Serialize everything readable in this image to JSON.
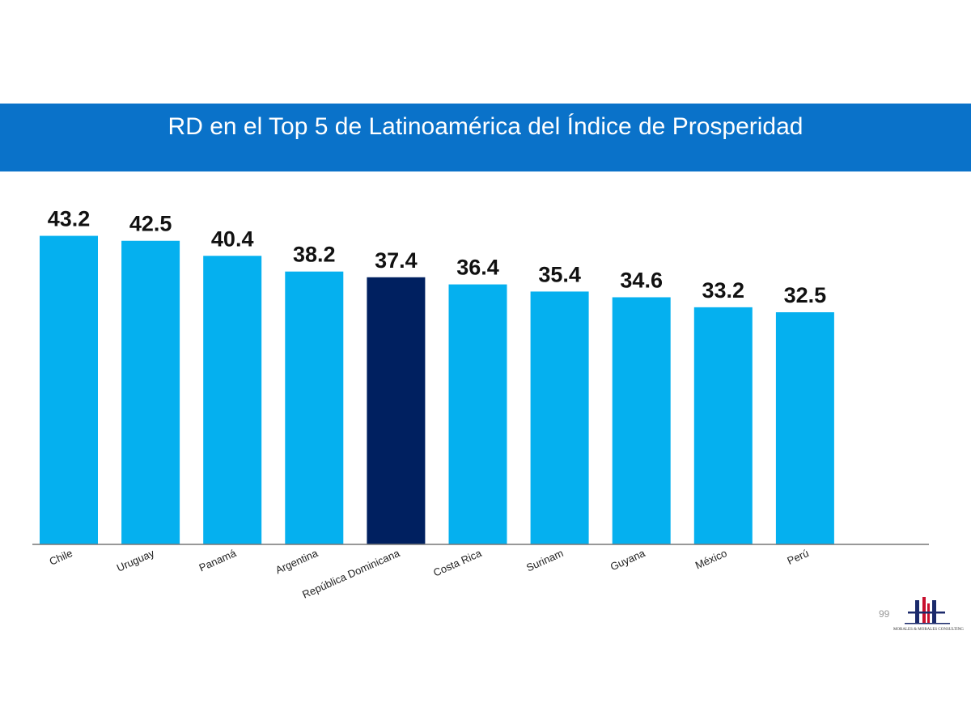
{
  "title": "RD en el Top 5 de Latinoamérica del Índice de Prosperidad",
  "page_number": "99",
  "logo": {
    "icon": "consulting-firm-logo-icon",
    "text": "MORALES & MORALES CONSULTING"
  },
  "colors": {
    "band": "#0a72c9",
    "bar": "#05b0ef",
    "highlight": "#002060",
    "axis": "#777777",
    "value_label": "#111111"
  },
  "chart_data": {
    "type": "bar",
    "categories": [
      "Chile",
      "Uruguay",
      "Panamá",
      "Argentina",
      "República Dominicana",
      "Costa Rica",
      "Surinam",
      "Guyana",
      "México",
      "Perú"
    ],
    "values": [
      43.2,
      42.5,
      40.4,
      38.2,
      37.4,
      36.4,
      35.4,
      34.6,
      33.2,
      32.5
    ],
    "value_labels": [
      "43.2",
      "42.5",
      "40.4",
      "38.2",
      "37.4",
      "36.4",
      "35.4",
      "34.6",
      "33.2",
      "32.5"
    ],
    "highlighted_category": "República Dominicana",
    "title": "",
    "xlabel": "",
    "ylabel": "",
    "ylim": [
      0,
      47
    ],
    "grid": false,
    "legend": "none"
  }
}
